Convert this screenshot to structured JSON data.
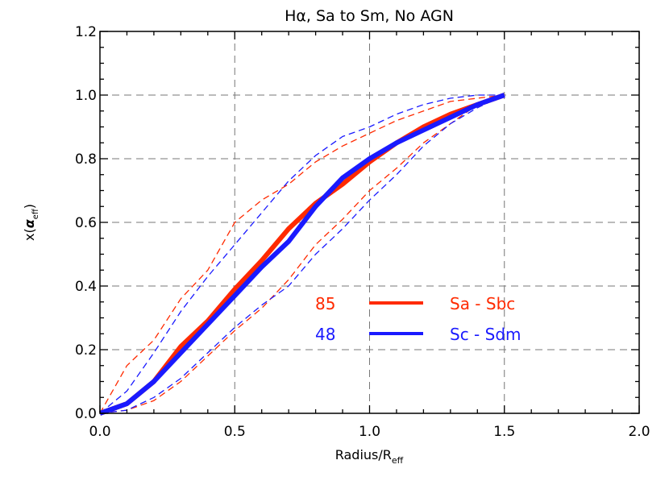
{
  "chart_data": {
    "type": "line",
    "title": "Hα, Sa to Sm, No AGN",
    "xlabel": {
      "main": "Radius/R",
      "sub": "eff"
    },
    "ylabel": {
      "pre": "x(",
      "greek": "α",
      "sub": "eff",
      "post": ")"
    },
    "xlim": [
      0.0,
      2.0
    ],
    "ylim": [
      0.0,
      1.2
    ],
    "xticks": [
      "0.0",
      "0.5",
      "1.0",
      "1.5",
      "2.0"
    ],
    "yticks": [
      "0.0",
      "0.2",
      "0.4",
      "0.6",
      "0.8",
      "1.0",
      "1.2"
    ],
    "grid": true,
    "x": [
      0.0,
      0.1,
      0.2,
      0.3,
      0.4,
      0.5,
      0.6,
      0.7,
      0.8,
      0.9,
      1.0,
      1.1,
      1.2,
      1.3,
      1.4,
      1.5
    ],
    "series": [
      {
        "name": "Sa - Sbc",
        "count": "85",
        "color": "#ff2a00",
        "style": "solid",
        "values": [
          0.0,
          0.03,
          0.1,
          0.21,
          0.29,
          0.39,
          0.48,
          0.58,
          0.66,
          0.72,
          0.79,
          0.85,
          0.9,
          0.94,
          0.97,
          1.0
        ]
      },
      {
        "name": "Sc - Sdm",
        "count": "48",
        "color": "#1a1aff",
        "style": "solid",
        "values": [
          0.0,
          0.03,
          0.1,
          0.19,
          0.28,
          0.37,
          0.46,
          0.54,
          0.65,
          0.74,
          0.8,
          0.85,
          0.89,
          0.93,
          0.97,
          1.0
        ]
      },
      {
        "color": "#ff2a00",
        "style": "dashed",
        "values": [
          0.0,
          0.15,
          0.23,
          0.36,
          0.45,
          0.6,
          0.67,
          0.72,
          0.79,
          0.84,
          0.88,
          0.92,
          0.95,
          0.98,
          0.99,
          1.0
        ]
      },
      {
        "color": "#ff2a00",
        "style": "dashed",
        "values": [
          0.0,
          0.01,
          0.04,
          0.1,
          0.18,
          0.26,
          0.33,
          0.42,
          0.53,
          0.61,
          0.7,
          0.77,
          0.85,
          0.91,
          0.97,
          1.0
        ]
      },
      {
        "color": "#1a1aff",
        "style": "dashed",
        "values": [
          0.0,
          0.07,
          0.19,
          0.32,
          0.43,
          0.53,
          0.63,
          0.73,
          0.81,
          0.87,
          0.9,
          0.94,
          0.97,
          0.99,
          1.0,
          1.0
        ]
      },
      {
        "color": "#1a1aff",
        "style": "dashed",
        "values": [
          0.0,
          0.01,
          0.05,
          0.11,
          0.19,
          0.27,
          0.34,
          0.4,
          0.5,
          0.58,
          0.67,
          0.75,
          0.84,
          0.91,
          0.96,
          1.0
        ]
      }
    ],
    "legend": {
      "placement": "center-right-lower"
    }
  }
}
